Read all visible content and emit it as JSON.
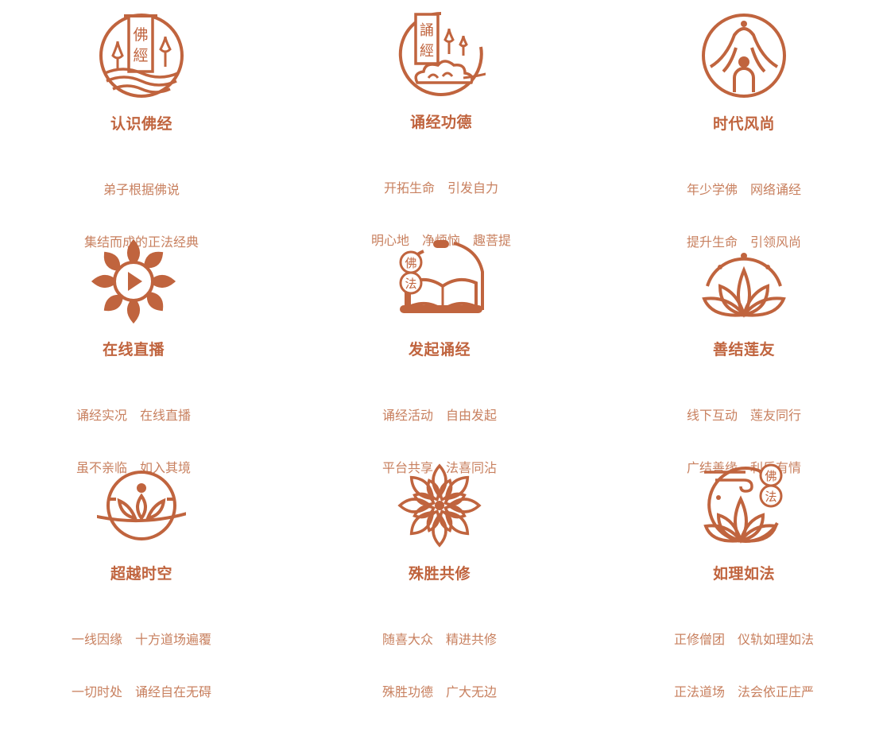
{
  "colors": {
    "accent": "#c0643e",
    "text": "#c8805f",
    "background": "#ffffff"
  },
  "features": [
    {
      "icon": "buddhist-sutra-scroll-icon",
      "glyphs": [
        "佛",
        "經"
      ],
      "title": "认识佛经",
      "lines": [
        "弟子根据佛说",
        "集结而成的正法经典"
      ]
    },
    {
      "icon": "chanting-sutra-cloud-icon",
      "glyphs": [
        "誦",
        "經"
      ],
      "title": "诵经功德",
      "lines": [
        "开拓生命　引发自力",
        "明心地　净烦恼　趣菩提"
      ]
    },
    {
      "icon": "meditating-figure-temple-icon",
      "title": "时代风尚",
      "lines": [
        "年少学佛　网络诵经",
        "提升生命　引领风尚"
      ]
    },
    {
      "icon": "lotus-play-button-icon",
      "title": "在线直播",
      "lines": [
        "诵经实况　在线直播",
        "虽不亲临　如入其境"
      ]
    },
    {
      "icon": "open-book-dharma-icon",
      "glyphs": [
        "佛",
        "法"
      ],
      "title": "发起诵经",
      "lines": [
        "诵经活动　自由发起",
        "平台共享　法喜同沾"
      ]
    },
    {
      "icon": "lotus-circle-icon",
      "title": "善结莲友",
      "lines": [
        "线下互动　莲友同行",
        "广结善缘　利乐有情"
      ]
    },
    {
      "icon": "lotus-orbit-planet-icon",
      "title": "超越时空",
      "lines": [
        "一线因缘　十方道场遍覆",
        "一切时处　诵经自在无碍"
      ]
    },
    {
      "icon": "mandala-flower-icon",
      "title": "殊胜共修",
      "lines": [
        "随喜大众　精进共修",
        "殊胜功德　广大无边"
      ]
    },
    {
      "icon": "lotus-dharma-seal-icon",
      "glyphs": [
        "佛",
        "法"
      ],
      "title": "如理如法",
      "lines": [
        "正修僧团　仪轨如理如法",
        "正法道场　法会依正庄严"
      ]
    }
  ]
}
